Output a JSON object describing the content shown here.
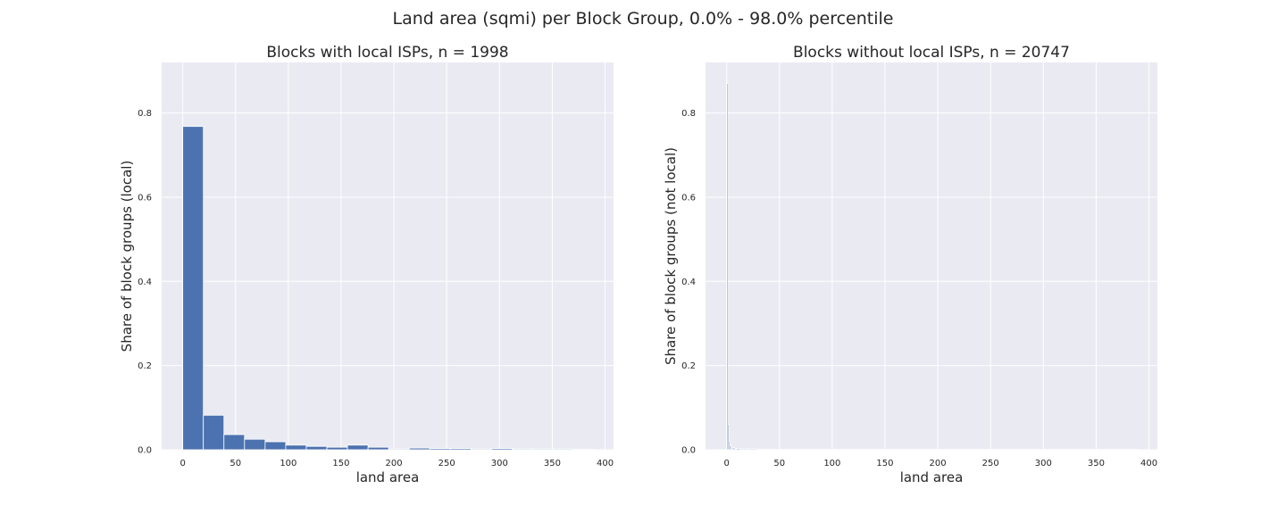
{
  "figure": {
    "title": "Land area (sqmi) per Block Group, 0.0% - 98.0% percentile"
  },
  "colors": {
    "axes_background": "#eaeaf2",
    "grid": "#ffffff",
    "bar": "#4c72b0"
  },
  "chart_data": [
    {
      "type": "bar",
      "title": "Blocks with local ISPs, n = 1998",
      "xlabel": "land area",
      "ylabel": "Share of block groups (local)",
      "xlim": [
        -20,
        408
      ],
      "ylim": [
        0,
        0.92
      ],
      "grid": true,
      "xticks": [
        0,
        50,
        100,
        150,
        200,
        250,
        300,
        350,
        400
      ],
      "yticks": [
        0.0,
        0.2,
        0.4,
        0.6,
        0.8
      ],
      "bin_edges": [
        0,
        19.5,
        39,
        58.5,
        78,
        97.5,
        117,
        136.5,
        156,
        175.5,
        195,
        214.5,
        234,
        253.5,
        273,
        292.5,
        312,
        331.5,
        351,
        370.5,
        390
      ],
      "values": [
        0.768,
        0.082,
        0.036,
        0.025,
        0.019,
        0.011,
        0.008,
        0.006,
        0.011,
        0.006,
        0.002,
        0.004,
        0.003,
        0.003,
        0.002,
        0.003,
        0.002,
        0.002,
        0.002,
        0.001
      ]
    },
    {
      "type": "bar",
      "title": "Blocks without local ISPs, n = 20747",
      "xlabel": "land area",
      "ylabel": "Share of block groups (not local)",
      "xlim": [
        -20,
        408
      ],
      "ylim": [
        0,
        0.92
      ],
      "grid": true,
      "xticks": [
        0,
        50,
        100,
        150,
        200,
        250,
        300,
        350,
        400
      ],
      "yticks": [
        0.0,
        0.2,
        0.4,
        0.6,
        0.8
      ],
      "bin_edges": [
        0,
        1,
        2,
        3,
        4,
        5,
        6,
        7,
        8,
        9,
        10,
        12,
        15,
        20,
        30,
        50,
        100,
        150,
        200,
        250,
        300,
        350,
        390
      ],
      "values": [
        0.87,
        0.06,
        0.02,
        0.012,
        0.008,
        0.006,
        0.005,
        0.004,
        0.003,
        0.003,
        0.003,
        0.002,
        0.002,
        0.002,
        0.001,
        0.001,
        0.001,
        0.001,
        0.001,
        0.001,
        0.001,
        0.001
      ]
    }
  ]
}
